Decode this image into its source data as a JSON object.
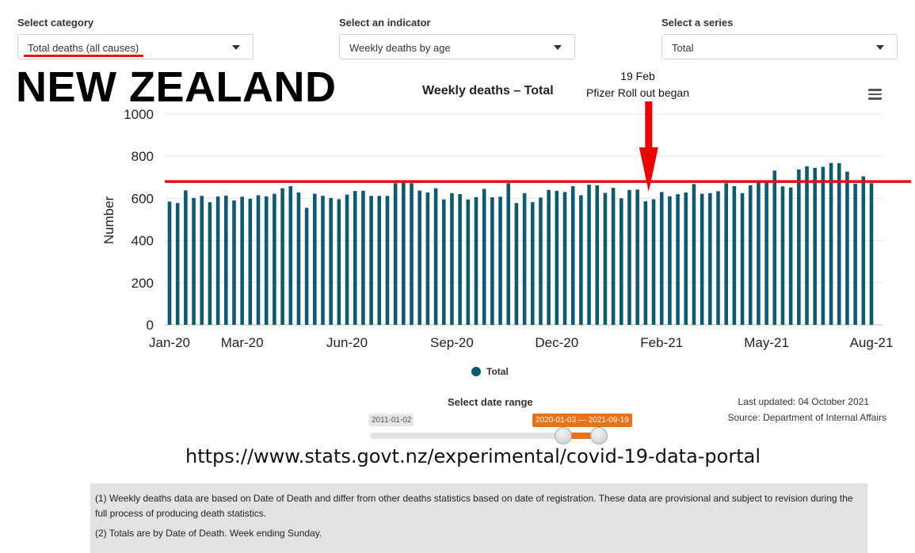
{
  "controls": {
    "category": {
      "label": "Select category",
      "value": "Total deaths (all causes)"
    },
    "indicator": {
      "label": "Select an indicator",
      "value": "Weekly deaths by age"
    },
    "series": {
      "label": "Select a series",
      "value": "Total"
    }
  },
  "country_title": "NEW ZEALAND",
  "annotation": {
    "line1": "19 Feb",
    "line2": "Pfizer Roll out began"
  },
  "range": {
    "label": "Select date range",
    "min_tag": "2011-01-02",
    "selected_tag": "2020-01-03 — 2021-09-19"
  },
  "updated": "Last updated: 04 October 2021",
  "source": "Source: Department of Internal Affairs",
  "url": "https://www.stats.govt.nz/experimental/covid-19-data-portal",
  "notes": [
    "(1) Weekly deaths data are based on Date of Death and differ from other deaths statistics based on date of registration. These data are provisional and subject to revision during the full process of producing death statistics.",
    "(2) Totals are by Date of Death. Week ending Sunday."
  ],
  "colors": {
    "bar": "#0e5a71",
    "reference_line": "#e11111",
    "range_accent": "#e8721c"
  },
  "chart_data": {
    "type": "bar",
    "title": "Weekly deaths – Total",
    "xlabel": "",
    "ylabel": "Number",
    "ylim": [
      0,
      1000
    ],
    "yticks": [
      0,
      200,
      400,
      600,
      800,
      1000
    ],
    "grid": true,
    "legend": "bottom-center",
    "tick_labels": [
      "Jan-20",
      "Mar-20",
      "Jun-20",
      "Sep-20",
      "Dec-20",
      "Feb-21",
      "May-21",
      "Aug-21"
    ],
    "tick_week_index": [
      0,
      9,
      22,
      35,
      48,
      61,
      74,
      87
    ],
    "series": [
      {
        "name": "Total",
        "values": [
          585,
          578,
          638,
          602,
          612,
          582,
          609,
          613,
          590,
          608,
          598,
          615,
          610,
          622,
          648,
          658,
          628,
          555,
          622,
          612,
          602,
          596,
          618,
          635,
          636,
          612,
          612,
          612,
          672,
          678,
          672,
          637,
          628,
          648,
          595,
          625,
          620,
          595,
          606,
          645,
          605,
          608,
          672,
          578,
          625,
          582,
          604,
          640,
          636,
          630,
          658,
          615,
          665,
          662,
          626,
          650,
          600,
          640,
          642,
          586,
          596,
          630,
          610,
          620,
          628,
          668,
          622,
          625,
          634,
          672,
          658,
          625,
          662,
          676,
          678,
          732,
          657,
          652,
          737,
          752,
          745,
          750,
          768,
          767,
          727,
          670,
          705,
          672
        ]
      }
    ],
    "reference_line": {
      "value": 676
    },
    "annotation": {
      "text": "19 Feb Pfizer Roll out began",
      "week_index": 59
    }
  }
}
